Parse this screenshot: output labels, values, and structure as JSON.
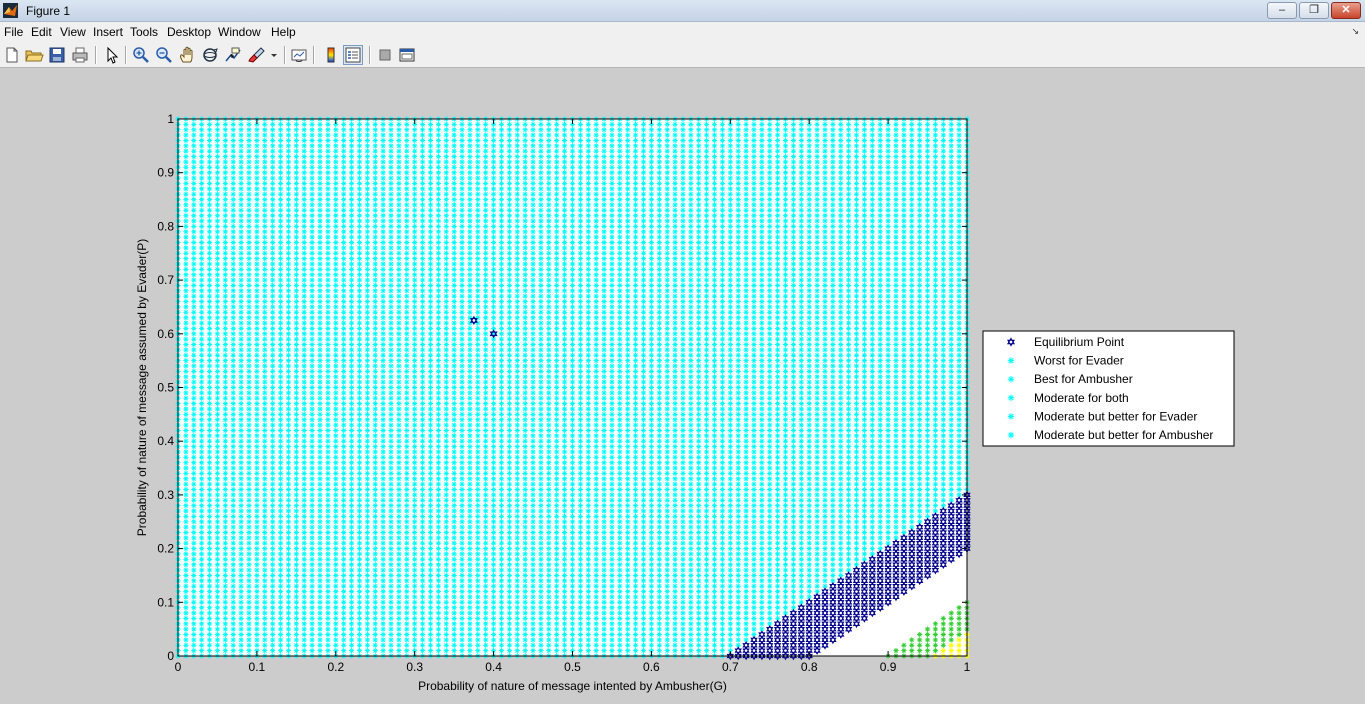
{
  "window": {
    "title": "Figure 1",
    "buttons": [
      "–",
      "❐",
      "✕"
    ]
  },
  "menu": [
    "File",
    "Edit",
    "View",
    "Insert",
    "Tools",
    "Desktop",
    "Window",
    "Help"
  ],
  "toolbar": {
    "icons": [
      "new-figure-icon",
      "open-file-icon",
      "save-icon",
      "print-icon",
      "pointer-icon",
      "zoom-in-icon",
      "zoom-out-icon",
      "pan-icon",
      "rotate-3d-icon",
      "data-cursor-icon",
      "brush-icon",
      "link-plot-icon",
      "colorbar-icon",
      "legend-icon",
      "hide-plot-tools-icon",
      "show-plot-tools-icon"
    ]
  },
  "chart_data": {
    "type": "scatter",
    "title": "",
    "xlabel": "Probability of nature of message intented by Ambusher(G)",
    "ylabel": "Probability of nature of message assumed by Evader(P)",
    "xlim": [
      0,
      1
    ],
    "ylim": [
      0,
      1
    ],
    "xticks": [
      "0",
      "0.1",
      "0.2",
      "0.3",
      "0.4",
      "0.5",
      "0.6",
      "0.7",
      "0.8",
      "0.9",
      "1"
    ],
    "yticks": [
      "0",
      "0.1",
      "0.2",
      "0.3",
      "0.4",
      "0.5",
      "0.6",
      "0.7",
      "0.8",
      "0.9",
      "1"
    ],
    "grid": false,
    "grid_step": 0.01,
    "legend_position": "right-outside",
    "series": [
      {
        "name": "Equilibrium Point",
        "marker": "hexagram",
        "color": "#00008b",
        "points": [
          [
            0.375,
            0.625
          ],
          [
            0.4,
            0.6
          ]
        ]
      },
      {
        "name": "Worst for Evader",
        "marker": "star",
        "color": "#00ffff",
        "region": "y > x - 0.7"
      },
      {
        "name": "Best for Ambusher",
        "marker": "star",
        "color": "#00ffff",
        "region": "y > x - 0.7"
      },
      {
        "name": "Moderate for both",
        "marker": "star",
        "color": "#00ffff",
        "region": "y > x - 0.7"
      },
      {
        "name": "Moderate but better for Evader",
        "marker": "star",
        "color": "#00ffff",
        "region": "y > x - 0.7"
      },
      {
        "name": "Moderate but better for Ambusher",
        "marker": "star",
        "color": "#00ffff",
        "region": "y > x - 0.7"
      }
    ],
    "regions": [
      {
        "color": "#00ffff",
        "marker": "star",
        "condition": "y > x - 0.7"
      },
      {
        "color": "#00008b",
        "marker": "hexagram",
        "condition": "x - 0.8 <= y <= x - 0.7"
      },
      {
        "color": "#ffffff",
        "marker": "none",
        "condition": "x - 0.9 < y < x - 0.8"
      },
      {
        "color": "#32cd32",
        "marker": "star",
        "condition": "x - 0.95 <= y <= x - 0.9"
      },
      {
        "color": "#ffff00",
        "marker": "star",
        "condition": "y < x - 0.95"
      }
    ]
  }
}
